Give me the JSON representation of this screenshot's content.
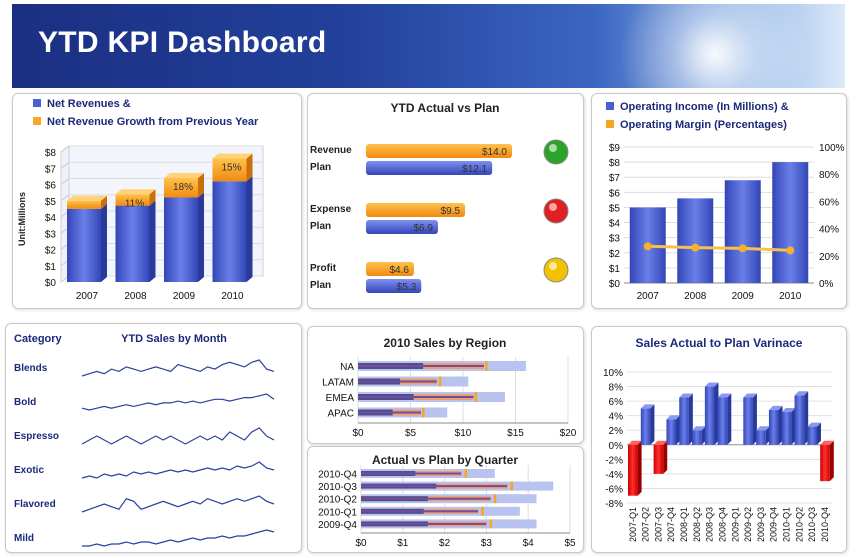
{
  "title": "YTD KPI Dashboard",
  "colors": {
    "blue": "#4a5fd0",
    "orange": "#f5a623",
    "red": "#e02020",
    "lightblue": "#b9c3f0",
    "navy": "#3a4aa8",
    "green": "#2aa52a",
    "yellow": "#f2c200"
  },
  "chart_data": [
    {
      "id": "net_revenues",
      "type": "bar",
      "legend": [
        "Net Revenues &",
        "Net Revenue Growth from Previous Year"
      ],
      "ylabel": "Unit:Millions",
      "categories": [
        "2007",
        "2008",
        "2009",
        "2010"
      ],
      "series": [
        {
          "name": "Net Revenues &",
          "values": [
            4.5,
            4.7,
            5.2,
            6.2
          ]
        },
        {
          "name": "Net Revenue Growth from Previous Year",
          "values": [
            0.5,
            0.7,
            1.2,
            1.4
          ]
        }
      ],
      "labels": [
        "",
        "11%",
        "18%",
        "15%"
      ],
      "yticks": [
        "$0",
        "$1",
        "$2",
        "$3",
        "$4",
        "$5",
        "$6",
        "$7",
        "$8"
      ],
      "ylim": [
        0,
        8
      ]
    },
    {
      "id": "ytd_actual_plan",
      "type": "bar",
      "title": "YTD Actual vs Plan",
      "rows": [
        {
          "label1": "Revenue",
          "label2": "Plan",
          "actual": 14.0,
          "actual_label": "$14.0",
          "plan": 12.1,
          "plan_label": "$12.1",
          "status": "green"
        },
        {
          "label1": "Expense",
          "label2": "Plan",
          "actual": 9.5,
          "actual_label": "$9.5",
          "plan": 6.9,
          "plan_label": "$6.9",
          "status": "red"
        },
        {
          "label1": "Profit",
          "label2": "Plan",
          "actual": 4.6,
          "actual_label": "$4.6",
          "plan": 5.3,
          "plan_label": "$5.3",
          "status": "yellow"
        }
      ]
    },
    {
      "id": "operating_income",
      "type": "bar",
      "legend": [
        "Operating Income (In Millions) &",
        "Operating Margin (Percentages)"
      ],
      "categories": [
        "2007",
        "2008",
        "2009",
        "2010"
      ],
      "bars": [
        5.0,
        5.6,
        6.8,
        8.0
      ],
      "line": [
        27,
        26,
        25.5,
        24
      ],
      "yticks_left": [
        "$0",
        "$1",
        "$2",
        "$3",
        "$4",
        "$5",
        "$6",
        "$7",
        "$8",
        "$9"
      ],
      "yticks_right": [
        "0%",
        "20%",
        "40%",
        "60%",
        "80%",
        "100%"
      ],
      "ylim": [
        0,
        9
      ]
    },
    {
      "id": "sales_by_month",
      "type": "line",
      "header": "Category",
      "title": "YTD Sales by Month",
      "series": [
        {
          "name": "Blends",
          "values": [
            3,
            4,
            5,
            4,
            6,
            5,
            7,
            6,
            5,
            6,
            7,
            6,
            5,
            8,
            7,
            6,
            5,
            7,
            6,
            8,
            9,
            8,
            7,
            9,
            10,
            6,
            5
          ]
        },
        {
          "name": "Bold",
          "values": [
            3,
            2,
            3,
            4,
            3,
            4,
            5,
            4,
            5,
            6,
            5,
            6,
            6,
            7,
            6,
            7,
            6,
            7,
            8,
            8,
            7,
            8,
            9,
            9,
            10,
            11,
            8
          ]
        },
        {
          "name": "Espresso",
          "values": [
            4,
            5,
            6,
            5,
            4,
            5,
            6,
            5,
            4,
            5,
            6,
            5,
            6,
            5,
            4,
            5,
            6,
            5,
            6,
            5,
            7,
            6,
            5,
            7,
            8,
            6,
            5
          ]
        },
        {
          "name": "Exotic",
          "values": [
            3,
            4,
            3,
            5,
            4,
            5,
            4,
            6,
            5,
            6,
            5,
            6,
            7,
            6,
            7,
            6,
            7,
            8,
            7,
            8,
            7,
            9,
            8,
            9,
            11,
            8,
            7
          ]
        },
        {
          "name": "Flavored",
          "values": [
            2,
            3,
            4,
            5,
            4,
            3,
            7,
            6,
            3,
            4,
            5,
            6,
            5,
            4,
            5,
            6,
            5,
            7,
            6,
            5,
            6,
            7,
            6,
            7,
            8,
            6,
            5
          ]
        },
        {
          "name": "Mild",
          "values": [
            3,
            3,
            4,
            3,
            4,
            4,
            5,
            4,
            5,
            5,
            4,
            5,
            6,
            5,
            6,
            7,
            6,
            7,
            7,
            8,
            7,
            8,
            8,
            9,
            10,
            11,
            10
          ]
        }
      ]
    },
    {
      "id": "sales_by_region",
      "type": "bar",
      "title": "2010 Sales by Region",
      "categories": [
        "NA",
        "LATAM",
        "EMEA",
        "APAC"
      ],
      "plan": [
        16,
        10.5,
        14,
        8.5
      ],
      "actual": [
        12,
        7.5,
        11,
        6
      ],
      "dark": [
        6.2,
        4,
        5.3,
        3.3
      ],
      "marker": [
        12.2,
        7.8,
        11.2,
        6.2
      ],
      "xticks": [
        "$0",
        "$5",
        "$10",
        "$15",
        "$20"
      ],
      "xlim": [
        0,
        20
      ]
    },
    {
      "id": "actual_plan_quarter",
      "type": "bar",
      "title": "Actual vs Plan by Quarter",
      "categories": [
        "2010-Q4",
        "2010-Q3",
        "2010-Q2",
        "2010-Q1",
        "2009-Q4"
      ],
      "plan": [
        3.2,
        4.6,
        4.2,
        3.8,
        4.2
      ],
      "actual": [
        2.4,
        3.5,
        3.1,
        2.8,
        3.0
      ],
      "dark": [
        1.3,
        1.8,
        1.6,
        1.5,
        1.6
      ],
      "marker": [
        2.5,
        3.6,
        3.2,
        2.9,
        3.1
      ],
      "xticks": [
        "$0",
        "$1",
        "$2",
        "$3",
        "$4",
        "$5"
      ],
      "xlim": [
        0,
        5
      ]
    },
    {
      "id": "variance",
      "type": "bar",
      "title": "Sales Actual to Plan Varinace",
      "categories": [
        "2007-Q1",
        "2007-Q2",
        "2007-Q3",
        "2007-Q4",
        "2008-Q1",
        "2008-Q2",
        "2008-Q3",
        "2008-Q4",
        "2009-Q1",
        "2009-Q2",
        "2009-Q3",
        "2009-Q4",
        "2010-Q1",
        "2010-Q2",
        "2010-Q3",
        "2010-Q4"
      ],
      "values": [
        -7,
        5,
        -4,
        3.5,
        6.5,
        2,
        8,
        6.5,
        0,
        6.5,
        2,
        4.8,
        4.5,
        6.8,
        2.5,
        -5
      ],
      "yticks": [
        "-8%",
        "-6%",
        "-4%",
        "-2%",
        "0%",
        "2%",
        "4%",
        "6%",
        "8%",
        "10%"
      ],
      "ylim": [
        -8,
        10
      ]
    }
  ]
}
